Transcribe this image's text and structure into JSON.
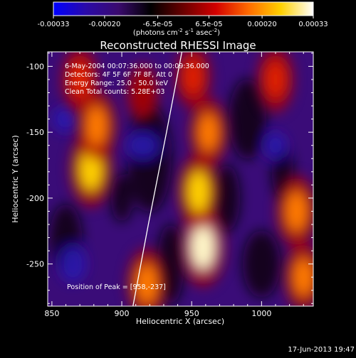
{
  "colorbar": {
    "tick_labels": [
      "-0.00033",
      "-0.00020",
      "-6.5e-05",
      "6.5e-05",
      "0.00020",
      "0.00033"
    ],
    "tick_values": [
      -0.00033,
      -0.0002,
      -6.5e-05,
      6.5e-05,
      0.0002,
      0.00033
    ],
    "range": [
      -0.00033,
      0.00033
    ],
    "units": "(photons cm",
    "units_sup1": "-2",
    "units_mid": " s",
    "units_sup2": "-1",
    "units_mid2": " asec",
    "units_sup3": "-2",
    "units_end": ")",
    "stops": [
      "#0000ff",
      "#2a0aa8",
      "#3a0a6e",
      "#000000",
      "#6a0000",
      "#d20000",
      "#ff6a00",
      "#ffd000",
      "#ffffff"
    ]
  },
  "chart_data": {
    "type": "heatmap",
    "title": "Reconstructed RHESSI Image",
    "xlabel": "Heliocentric X (arcsec)",
    "ylabel": "Heliocentric Y (arcsec)",
    "xlim": [
      847,
      1037
    ],
    "ylim": [
      -282,
      -89
    ],
    "x_ticks": [
      850,
      900,
      950,
      1000
    ],
    "x_tick_labels": [
      "850",
      "900",
      "950",
      "1000"
    ],
    "y_ticks": [
      -100,
      -150,
      -200,
      -250
    ],
    "y_tick_labels": [
      "-100",
      "-150",
      "-200",
      "-250"
    ],
    "limb_curve": [
      [
        943,
        -89
      ],
      [
        932,
        -150
      ],
      [
        919,
        -220
      ],
      [
        908,
        -282
      ]
    ],
    "annotations": [
      "6-May-2004 00:07:36.000 to 00:09:36.000",
      "Detectors: 4F 5F 6F 7F 8F, Att 0",
      "Energy Range: 25.0 - 50.0 keV",
      "Clean    Total counts: 5.28E+03"
    ],
    "peak_label": "Position of Peak = [958,-237]",
    "peak": [
      958,
      -237
    ],
    "bright_sources": [
      {
        "x": 878,
        "y": -178,
        "value": 0.0003
      },
      {
        "x": 882,
        "y": -145,
        "value": 0.00024
      },
      {
        "x": 870,
        "y": -110,
        "value": 0.0002
      },
      {
        "x": 958,
        "y": -237,
        "value": 0.00033
      },
      {
        "x": 955,
        "y": -195,
        "value": 0.00028
      },
      {
        "x": 962,
        "y": -150,
        "value": 0.00022
      },
      {
        "x": 951,
        "y": -108,
        "value": 0.00018
      },
      {
        "x": 918,
        "y": -265,
        "value": 0.00025
      },
      {
        "x": 1025,
        "y": -210,
        "value": 0.00026
      },
      {
        "x": 1030,
        "y": -260,
        "value": 0.00022
      },
      {
        "x": 1010,
        "y": -110,
        "value": 0.0002
      },
      {
        "x": 915,
        "y": -120,
        "value": 0.00012
      }
    ]
  },
  "timestamp": "17-Jun-2013 19:47"
}
